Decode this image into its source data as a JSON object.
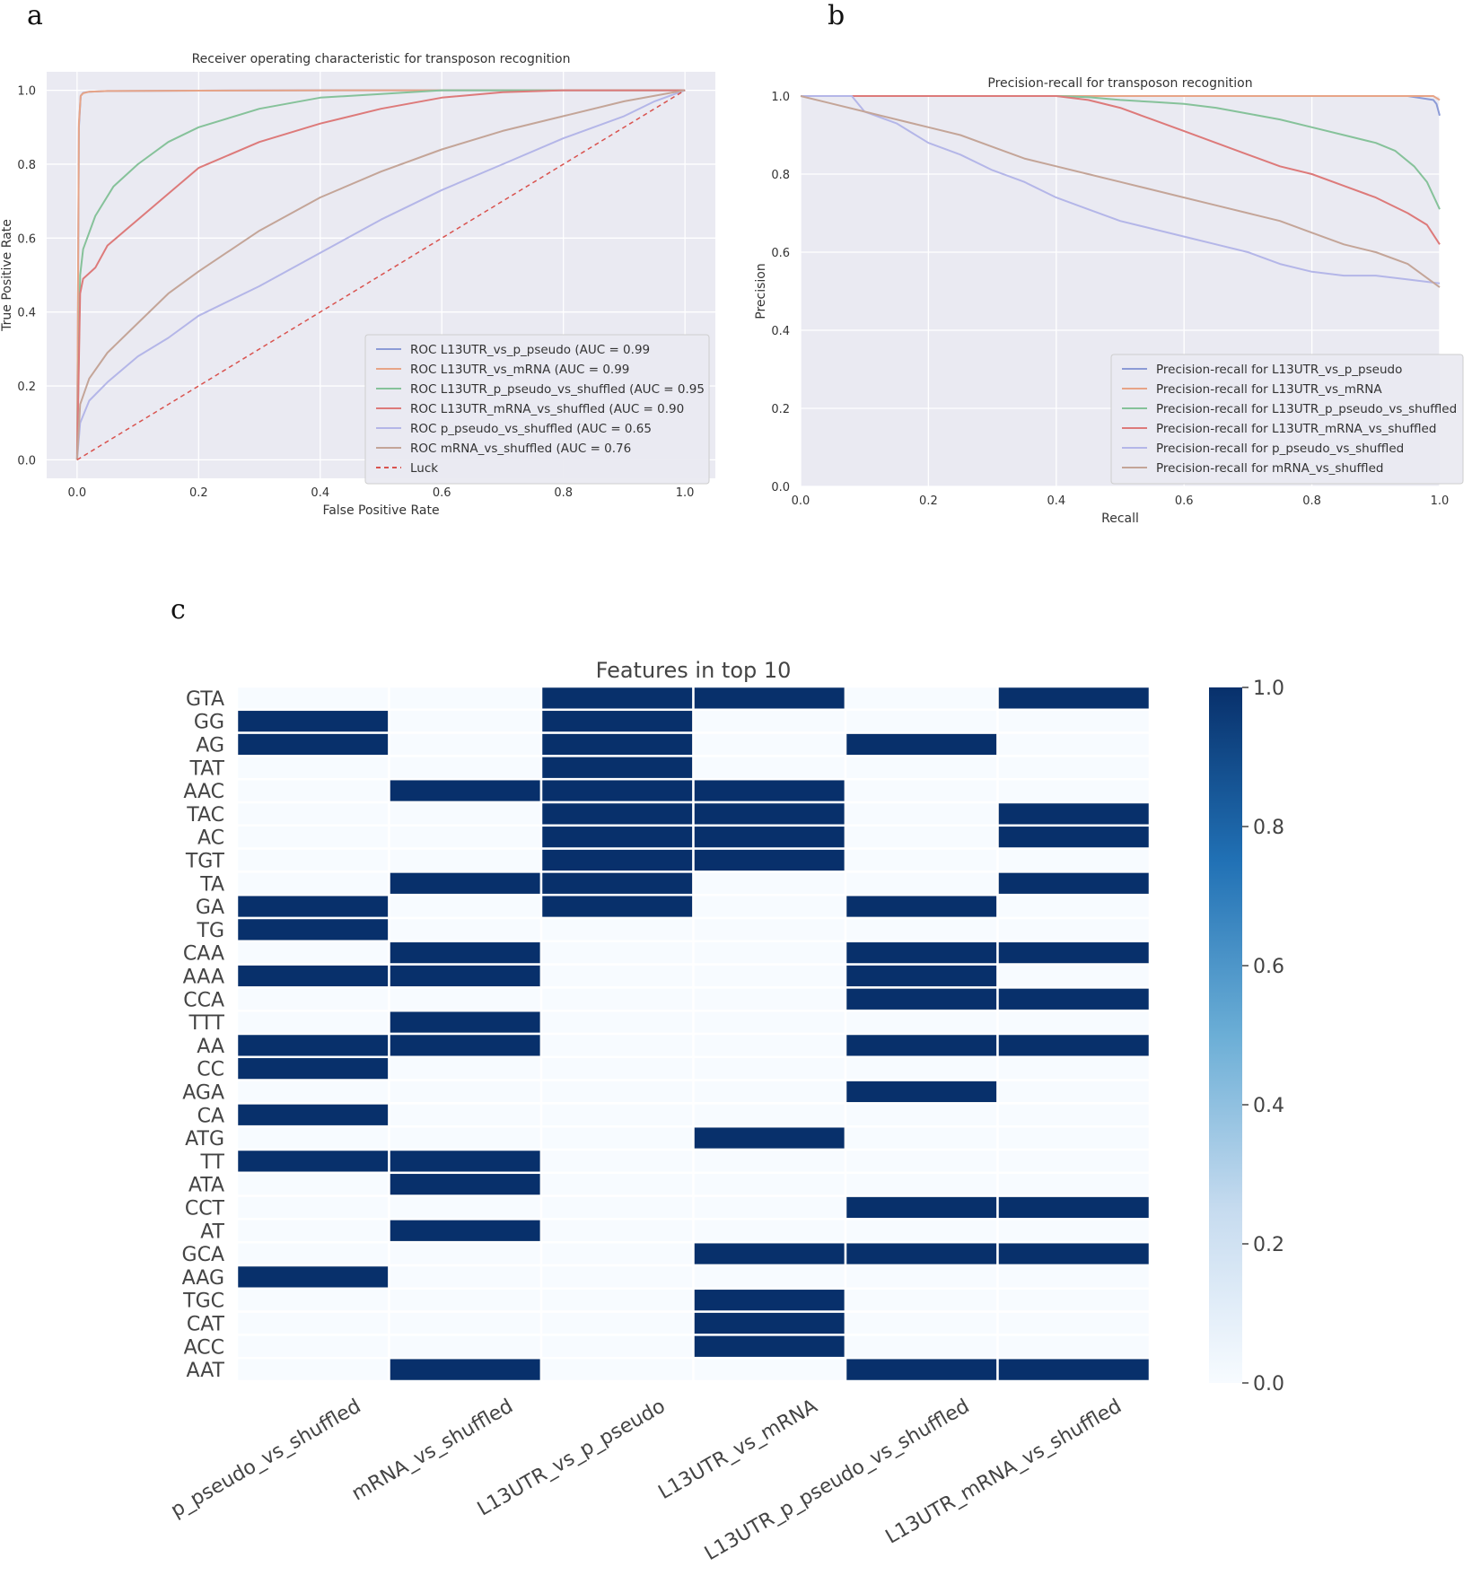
{
  "panels": {
    "a": "a",
    "b": "b",
    "c": "c"
  },
  "chart_data": [
    {
      "id": "roc",
      "type": "line",
      "title": "Receiver operating characteristic for transposon recognition",
      "xlabel": "False Positive Rate",
      "ylabel": "True Positive Rate",
      "xlim": [
        -0.05,
        1.05
      ],
      "ylim": [
        -0.05,
        1.05
      ],
      "xticks": [
        0.0,
        0.2,
        0.4,
        0.6,
        0.8,
        1.0
      ],
      "yticks": [
        0.0,
        0.2,
        0.4,
        0.6,
        0.8,
        1.0
      ],
      "grid": true,
      "legend_position": "lower-right",
      "series": [
        {
          "name": "ROC L13UTR_vs_p_pseudo (AUC = 0.99",
          "color": "#8c9bd6",
          "x": [
            0,
            0.003,
            0.006,
            0.01,
            0.02,
            0.05,
            0.2,
            0.5,
            1.0
          ],
          "y": [
            0,
            0.9,
            0.985,
            0.993,
            0.996,
            0.998,
            0.999,
            1.0,
            1.0
          ]
        },
        {
          "name": "ROC L13UTR_vs_mRNA (AUC = 0.99",
          "color": "#e7a487",
          "x": [
            0,
            0.003,
            0.006,
            0.01,
            0.02,
            0.05,
            0.2,
            0.5,
            1.0
          ],
          "y": [
            0,
            0.91,
            0.985,
            0.992,
            0.996,
            0.998,
            0.999,
            1.0,
            1.0
          ]
        },
        {
          "name": "ROC L13UTR_p_pseudo_vs_shuffled (AUC = 0.95",
          "color": "#86c29a",
          "x": [
            0,
            0.005,
            0.01,
            0.03,
            0.06,
            0.1,
            0.15,
            0.2,
            0.3,
            0.4,
            0.5,
            0.6,
            0.8,
            1.0
          ],
          "y": [
            0,
            0.5,
            0.57,
            0.66,
            0.74,
            0.8,
            0.86,
            0.9,
            0.95,
            0.98,
            0.99,
            1.0,
            1.0,
            1.0
          ]
        },
        {
          "name": "ROC L13UTR_mRNA_vs_shuffled (AUC = 0.90",
          "color": "#dd7a7a",
          "x": [
            0,
            0.005,
            0.01,
            0.03,
            0.05,
            0.1,
            0.15,
            0.2,
            0.3,
            0.4,
            0.5,
            0.6,
            0.7,
            0.8,
            1.0
          ],
          "y": [
            0,
            0.45,
            0.49,
            0.52,
            0.58,
            0.65,
            0.72,
            0.79,
            0.86,
            0.91,
            0.95,
            0.98,
            0.995,
            1.0,
            1.0
          ]
        },
        {
          "name": "ROC p_pseudo_vs_shuffled (AUC = 0.65",
          "color": "#b4b6e8",
          "x": [
            0,
            0.005,
            0.02,
            0.05,
            0.1,
            0.15,
            0.2,
            0.3,
            0.4,
            0.5,
            0.6,
            0.7,
            0.8,
            0.9,
            0.95,
            1.0
          ],
          "y": [
            0,
            0.1,
            0.16,
            0.21,
            0.28,
            0.33,
            0.39,
            0.47,
            0.56,
            0.65,
            0.73,
            0.8,
            0.87,
            0.93,
            0.97,
            1.0
          ]
        },
        {
          "name": "ROC mRNA_vs_shuffled (AUC = 0.76",
          "color": "#c4a598",
          "x": [
            0,
            0.005,
            0.02,
            0.05,
            0.1,
            0.15,
            0.2,
            0.3,
            0.4,
            0.5,
            0.6,
            0.7,
            0.8,
            0.9,
            1.0
          ],
          "y": [
            0,
            0.15,
            0.22,
            0.29,
            0.37,
            0.45,
            0.51,
            0.62,
            0.71,
            0.78,
            0.84,
            0.89,
            0.93,
            0.97,
            1.0
          ]
        },
        {
          "name": "Luck",
          "color": "#d9534f",
          "dashed": true,
          "x": [
            0,
            1
          ],
          "y": [
            0,
            1
          ]
        }
      ]
    },
    {
      "id": "pr",
      "type": "line",
      "title": "Precision-recall for transposon recognition",
      "xlabel": "Recall",
      "ylabel": "Precision",
      "xlim": [
        0.0,
        1.0
      ],
      "ylim": [
        0.0,
        1.0
      ],
      "xticks": [
        0.0,
        0.2,
        0.4,
        0.6,
        0.8,
        1.0
      ],
      "yticks": [
        0.0,
        0.2,
        0.4,
        0.6,
        0.8,
        1.0
      ],
      "grid": true,
      "legend_position": "lower-right",
      "series": [
        {
          "name": "Precision-recall for L13UTR_vs_p_pseudo",
          "color": "#8c9bd6",
          "x": [
            0,
            0.5,
            0.95,
            0.99,
            0.995,
            1.0
          ],
          "y": [
            1.0,
            1.0,
            1.0,
            0.99,
            0.98,
            0.95
          ]
        },
        {
          "name": "Precision-recall for L13UTR_vs_mRNA",
          "color": "#e7a487",
          "x": [
            0,
            0.5,
            0.99,
            1.0
          ],
          "y": [
            1.0,
            1.0,
            1.0,
            0.99
          ]
        },
        {
          "name": "Precision-recall for L13UTR_p_pseudo_vs_shuffled",
          "color": "#86c29a",
          "x": [
            0,
            0.4,
            0.45,
            0.5,
            0.55,
            0.6,
            0.65,
            0.7,
            0.75,
            0.8,
            0.85,
            0.9,
            0.93,
            0.96,
            0.98,
            1.0
          ],
          "y": [
            1.0,
            1.0,
            0.997,
            0.99,
            0.985,
            0.98,
            0.97,
            0.955,
            0.94,
            0.92,
            0.9,
            0.88,
            0.86,
            0.82,
            0.78,
            0.71
          ]
        },
        {
          "name": "Precision-recall for L13UTR_mRNA_vs_shuffled",
          "color": "#dd7a7a",
          "x": [
            0,
            0.4,
            0.45,
            0.5,
            0.55,
            0.6,
            0.65,
            0.7,
            0.75,
            0.8,
            0.85,
            0.9,
            0.95,
            0.98,
            1.0
          ],
          "y": [
            1.0,
            1.0,
            0.99,
            0.97,
            0.94,
            0.91,
            0.88,
            0.85,
            0.82,
            0.8,
            0.77,
            0.74,
            0.7,
            0.67,
            0.62
          ]
        },
        {
          "name": "Precision-recall for p_pseudo_vs_shuffled",
          "color": "#b4b6e8",
          "x": [
            0,
            0.05,
            0.08,
            0.1,
            0.15,
            0.2,
            0.25,
            0.3,
            0.35,
            0.4,
            0.45,
            0.5,
            0.55,
            0.6,
            0.65,
            0.7,
            0.75,
            0.8,
            0.85,
            0.9,
            0.95,
            1.0
          ],
          "y": [
            1.0,
            1.0,
            1.0,
            0.96,
            0.93,
            0.88,
            0.85,
            0.81,
            0.78,
            0.74,
            0.71,
            0.68,
            0.66,
            0.64,
            0.62,
            0.6,
            0.57,
            0.55,
            0.54,
            0.54,
            0.53,
            0.52
          ]
        },
        {
          "name": "Precision-recall for mRNA_vs_shuffled",
          "color": "#c4a598",
          "x": [
            0,
            0.05,
            0.1,
            0.15,
            0.2,
            0.25,
            0.3,
            0.35,
            0.4,
            0.45,
            0.5,
            0.55,
            0.6,
            0.65,
            0.7,
            0.75,
            0.8,
            0.85,
            0.9,
            0.95,
            1.0
          ],
          "y": [
            1.0,
            0.98,
            0.96,
            0.94,
            0.92,
            0.9,
            0.87,
            0.84,
            0.82,
            0.8,
            0.78,
            0.76,
            0.74,
            0.72,
            0.7,
            0.68,
            0.65,
            0.62,
            0.6,
            0.57,
            0.51
          ]
        }
      ]
    },
    {
      "id": "heatmap",
      "type": "heatmap",
      "title": "Features in top 10",
      "rows": [
        "GTA",
        "GG",
        "AG",
        "TAT",
        "AAC",
        "TAC",
        "AC",
        "TGT",
        "TA",
        "GA",
        "TG",
        "CAA",
        "AAA",
        "CCA",
        "TTT",
        "AA",
        "CC",
        "AGA",
        "CA",
        "ATG",
        "TT",
        "ATA",
        "CCT",
        "AT",
        "GCA",
        "AAG",
        "TGC",
        "CAT",
        "ACC",
        "AAT"
      ],
      "columns": [
        "p_pseudo_vs_shuffled",
        "mRNA_vs_shuffled",
        "L13UTR_vs_p_pseudo",
        "L13UTR_vs_mRNA",
        "L13UTR_p_pseudo_vs_shuffled",
        "L13UTR_mRNA_vs_shuffled"
      ],
      "values": [
        [
          0,
          0,
          1,
          1,
          0,
          1
        ],
        [
          1,
          0,
          1,
          0,
          0,
          0
        ],
        [
          1,
          0,
          1,
          0,
          1,
          0
        ],
        [
          0,
          0,
          1,
          0,
          0,
          0
        ],
        [
          0,
          1,
          1,
          1,
          0,
          0
        ],
        [
          0,
          0,
          1,
          1,
          0,
          1
        ],
        [
          0,
          0,
          1,
          1,
          0,
          1
        ],
        [
          0,
          0,
          1,
          1,
          0,
          0
        ],
        [
          0,
          1,
          1,
          0,
          0,
          1
        ],
        [
          1,
          0,
          1,
          0,
          1,
          0
        ],
        [
          1,
          0,
          0,
          0,
          0,
          0
        ],
        [
          0,
          1,
          0,
          0,
          1,
          1
        ],
        [
          1,
          1,
          0,
          0,
          1,
          0
        ],
        [
          0,
          0,
          0,
          0,
          1,
          1
        ],
        [
          0,
          1,
          0,
          0,
          0,
          0
        ],
        [
          1,
          1,
          0,
          0,
          1,
          1
        ],
        [
          1,
          0,
          0,
          0,
          0,
          0
        ],
        [
          0,
          0,
          0,
          0,
          1,
          0
        ],
        [
          1,
          0,
          0,
          0,
          0,
          0
        ],
        [
          0,
          0,
          0,
          1,
          0,
          0
        ],
        [
          1,
          1,
          0,
          0,
          0,
          0
        ],
        [
          0,
          1,
          0,
          0,
          0,
          0
        ],
        [
          0,
          0,
          0,
          0,
          1,
          1
        ],
        [
          0,
          1,
          0,
          0,
          0,
          0
        ],
        [
          0,
          0,
          0,
          1,
          1,
          1
        ],
        [
          1,
          0,
          0,
          0,
          0,
          0
        ],
        [
          0,
          0,
          0,
          1,
          0,
          0
        ],
        [
          0,
          0,
          0,
          1,
          0,
          0
        ],
        [
          0,
          0,
          0,
          1,
          0,
          0
        ],
        [
          0,
          1,
          0,
          0,
          1,
          1
        ]
      ],
      "colorbar": {
        "min": 0.0,
        "max": 1.0,
        "ticks": [
          "0.0",
          "0.2",
          "0.4",
          "0.6",
          "0.8",
          "1.0"
        ],
        "low_color": "#f7fbff",
        "high_color": "#08306b"
      }
    }
  ]
}
